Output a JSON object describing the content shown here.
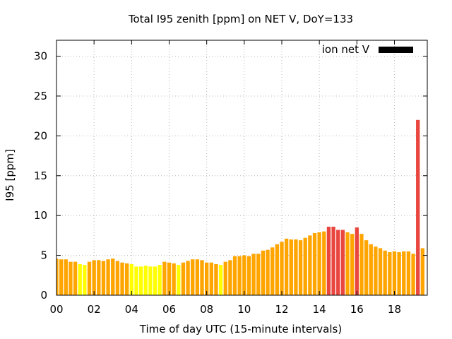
{
  "chart_data": {
    "type": "bar",
    "title": "Total I95 zenith [ppm] on NET V, DoY=133",
    "xlabel": "Time of day UTC (15-minute intervals)",
    "ylabel": "I95 [ppm]",
    "legend": {
      "label": "ion net V",
      "color": "#000000",
      "position": "top-right"
    },
    "grid": true,
    "xlim": [
      0,
      19.75
    ],
    "ylim": [
      0,
      32
    ],
    "x_ticks": [
      0,
      2,
      4,
      6,
      8,
      10,
      12,
      14,
      16,
      18
    ],
    "x_tick_labels": [
      "00",
      "02",
      "04",
      "06",
      "08",
      "10",
      "12",
      "14",
      "16",
      "18"
    ],
    "y_ticks": [
      0,
      5,
      10,
      15,
      20,
      25,
      30
    ],
    "y_tick_labels": [
      "0",
      "5",
      "10",
      "15",
      "20",
      "25",
      "30"
    ],
    "interval_hours": 0.25,
    "colors": {
      "yellow": "#ffff00",
      "orange": "#ffa500",
      "red": "#e8463e"
    },
    "series": [
      {
        "values": [
          4.6,
          4.5,
          4.5,
          4.2,
          4.2,
          3.9,
          3.8,
          4.2,
          4.4,
          4.4,
          4.3,
          4.5,
          4.6,
          4.3,
          4.1,
          4.0,
          3.9,
          3.6,
          3.6,
          3.7,
          3.6,
          3.6,
          3.8,
          4.2,
          4.1,
          4.0,
          3.8,
          4.1,
          4.3,
          4.5,
          4.5,
          4.4,
          4.1,
          4.1,
          3.9,
          3.8,
          4.2,
          4.4,
          4.9,
          4.9,
          5.0,
          4.9,
          5.2,
          5.2,
          5.6,
          5.7,
          6.0,
          6.4,
          6.7,
          7.1,
          7.0,
          7.0,
          6.9,
          7.2,
          7.5,
          7.8,
          7.9,
          8.0,
          8.6,
          8.6,
          8.2,
          8.2,
          7.9,
          7.7,
          8.5,
          7.7,
          6.9,
          6.4,
          6.1,
          5.9,
          5.6,
          5.4,
          5.5,
          5.4,
          5.5,
          5.5,
          5.2,
          22.0,
          5.9
        ],
        "colors": [
          "orange",
          "orange",
          "orange",
          "orange",
          "orange",
          "yellow",
          "yellow",
          "orange",
          "orange",
          "orange",
          "orange",
          "orange",
          "orange",
          "orange",
          "orange",
          "orange",
          "yellow",
          "yellow",
          "yellow",
          "yellow",
          "yellow",
          "yellow",
          "yellow",
          "orange",
          "orange",
          "orange",
          "yellow",
          "orange",
          "orange",
          "orange",
          "orange",
          "orange",
          "orange",
          "orange",
          "orange",
          "yellow",
          "orange",
          "orange",
          "orange",
          "orange",
          "orange",
          "orange",
          "orange",
          "orange",
          "orange",
          "orange",
          "orange",
          "orange",
          "orange",
          "orange",
          "orange",
          "orange",
          "orange",
          "orange",
          "orange",
          "orange",
          "orange",
          "orange",
          "red",
          "red",
          "red",
          "red",
          "orange",
          "orange",
          "red",
          "orange",
          "orange",
          "orange",
          "orange",
          "orange",
          "orange",
          "orange",
          "orange",
          "orange",
          "orange",
          "orange",
          "orange",
          "red",
          "orange"
        ]
      }
    ]
  }
}
